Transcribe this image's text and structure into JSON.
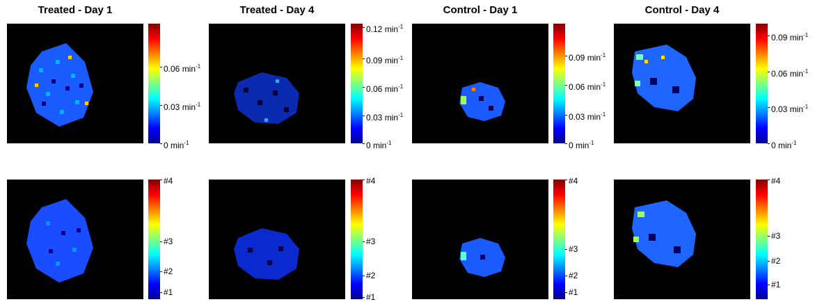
{
  "panels": [
    {
      "title": "Treated - Day 1",
      "top_colorbar": {
        "ticks": [
          {
            "value": "0.06",
            "unit": "min",
            "exp": "-1",
            "frac": 0.64
          },
          {
            "value": "0.03",
            "unit": "min",
            "exp": "-1",
            "frac": 0.32
          },
          {
            "value": "0",
            "unit": "min",
            "exp": "-1",
            "frac": 0.0
          }
        ]
      },
      "bottom_colorbar": {
        "ticks": [
          {
            "label": "#4",
            "frac": 1.0
          },
          {
            "label": "#3",
            "frac": 0.48
          },
          {
            "label": "#2",
            "frac": 0.23
          },
          {
            "label": "#1",
            "frac": 0.06
          }
        ]
      }
    },
    {
      "title": "Treated - Day 4",
      "top_colorbar": {
        "ticks": [
          {
            "value": "0.12",
            "unit": "min",
            "exp": "-1",
            "frac": 0.97
          },
          {
            "value": "0.09",
            "unit": "min",
            "exp": "-1",
            "frac": 0.71
          },
          {
            "value": "0.06",
            "unit": "min",
            "exp": "-1",
            "frac": 0.47
          },
          {
            "value": "0.03",
            "unit": "min",
            "exp": "-1",
            "frac": 0.23
          },
          {
            "value": "0",
            "unit": "min",
            "exp": "-1",
            "frac": 0.0
          }
        ]
      },
      "bottom_colorbar": {
        "ticks": [
          {
            "label": "#4",
            "frac": 1.0
          },
          {
            "label": "#3",
            "frac": 0.48
          },
          {
            "label": "#2",
            "frac": 0.2
          },
          {
            "label": "#1",
            "frac": 0.02
          }
        ]
      }
    },
    {
      "title": "Control - Day 1",
      "top_colorbar": {
        "ticks": [
          {
            "value": "0.09",
            "unit": "min",
            "exp": "-1",
            "frac": 0.73
          },
          {
            "value": "0.06",
            "unit": "min",
            "exp": "-1",
            "frac": 0.49
          },
          {
            "value": "0.03",
            "unit": "min",
            "exp": "-1",
            "frac": 0.24
          },
          {
            "value": "0",
            "unit": "min",
            "exp": "-1",
            "frac": 0.0
          }
        ]
      },
      "bottom_colorbar": {
        "ticks": [
          {
            "label": "#4",
            "frac": 1.0
          },
          {
            "label": "#3",
            "frac": 0.42
          },
          {
            "label": "#2",
            "frac": 0.2
          },
          {
            "label": "#1",
            "frac": 0.06
          }
        ]
      }
    },
    {
      "title": "Control - Day 4",
      "top_colorbar": {
        "ticks": [
          {
            "value": "0.09",
            "unit": "min",
            "exp": "-1",
            "frac": 0.9
          },
          {
            "value": "0.06",
            "unit": "min",
            "exp": "-1",
            "frac": 0.6
          },
          {
            "value": "0.03",
            "unit": "min",
            "exp": "-1",
            "frac": 0.3
          },
          {
            "value": "0",
            "unit": "min",
            "exp": "-1",
            "frac": 0.0
          }
        ]
      },
      "bottom_colorbar": {
        "ticks": [
          {
            "label": "#4",
            "frac": 1.0
          },
          {
            "label": "#3",
            "frac": 0.53
          },
          {
            "label": "#2",
            "frac": 0.32
          },
          {
            "label": "#1",
            "frac": 0.12
          }
        ]
      }
    }
  ]
}
